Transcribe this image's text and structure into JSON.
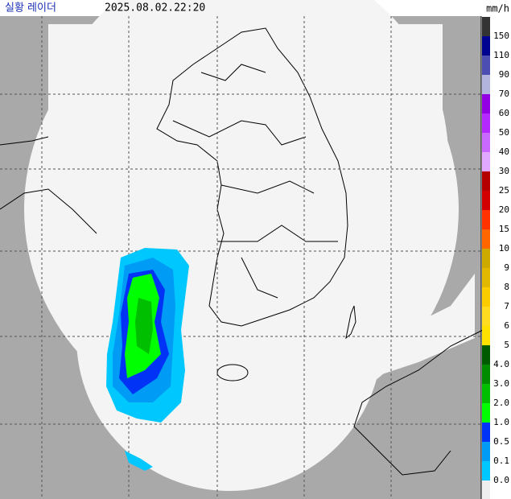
{
  "header": {
    "title": "실황 레이더",
    "time": "2025.08.02.22:20"
  },
  "legend": {
    "unit": "mm/h",
    "labels": [
      "150",
      "110",
      "90",
      "70",
      "60",
      "50",
      "40",
      "30",
      "25",
      "20",
      "15",
      "10",
      "9",
      "8",
      "7",
      "6",
      "5",
      "4.0",
      "3.0",
      "2.0",
      "1.0",
      "0.5",
      "0.1",
      "0.0"
    ],
    "colors": [
      "#333333",
      "#000390",
      "#4c4eb1",
      "#b3b4de",
      "#9300e4",
      "#b329ff",
      "#c969ff",
      "#e0a9ff",
      "#b40000",
      "#d20000",
      "#ff3200",
      "#ff6600",
      "#ccaa00",
      "#e0b900",
      "#f9cd00",
      "#ffdc1f",
      "#ffe100",
      "#005a00",
      "#008c00",
      "#00be00",
      "#00ff00",
      "#0033f5",
      "#009bf5",
      "#00c8ff",
      "#eeeeee"
    ]
  }
}
